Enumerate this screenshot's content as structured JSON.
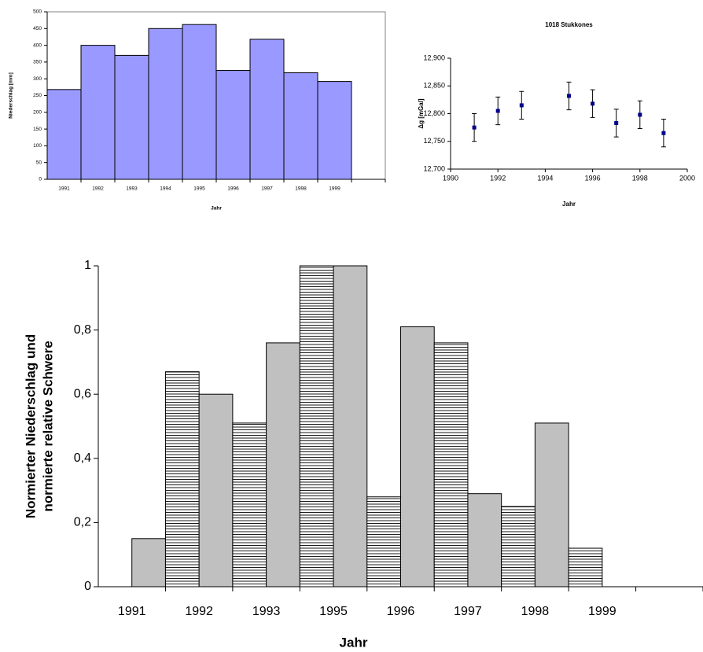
{
  "chart_data": [
    {
      "type": "bar",
      "xlabel": "Jahr",
      "ylabel": "Niederschlag [mm]",
      "categories": [
        "1991",
        "1992",
        "1993",
        "1994",
        "1995",
        "1996",
        "1997",
        "1998",
        "1999",
        null
      ],
      "values": [
        268,
        400,
        370,
        450,
        462,
        325,
        418,
        318,
        292,
        null
      ],
      "color": "#9999ff",
      "ylim": [
        0,
        500
      ],
      "yticks": [
        0,
        50,
        100,
        150,
        200,
        250,
        300,
        350,
        400,
        450,
        500
      ]
    },
    {
      "type": "scatter",
      "title": "1018 Stukkones",
      "xlabel": "Jahr",
      "ylabel": "Δg [mGal]",
      "x": [
        1991,
        1992,
        1993,
        1995,
        1996,
        1997,
        1998,
        1999
      ],
      "y": [
        12775,
        12805,
        12815,
        12832,
        12818,
        12783,
        12798,
        12765
      ],
      "errors": [
        25,
        25,
        25,
        25,
        25,
        25,
        25,
        25
      ],
      "color": "#00008b",
      "xlim": [
        1990,
        2000
      ],
      "xticks": [
        1990,
        1992,
        1994,
        1996,
        1998,
        2000
      ],
      "ylim": [
        12700,
        12900
      ],
      "yticks": [
        {
          "value": 12700,
          "label": "12,700"
        },
        {
          "value": 12750,
          "label": "12,750"
        },
        {
          "value": 12800,
          "label": "12,800"
        },
        {
          "value": 12850,
          "label": "12,850"
        },
        {
          "value": 12900,
          "label": "12,900"
        }
      ]
    },
    {
      "type": "bar",
      "xlabel": "Jahr",
      "ylabel": [
        "Normierter Niederschlag und",
        "normierte relative Schwere"
      ],
      "categories": [
        "1991",
        "1992",
        "1993",
        "1995",
        "1996",
        "1997",
        "1998",
        "1999",
        null
      ],
      "series": [
        {
          "color": "#ffffff",
          "hatch": "horizontal",
          "values": [
            0,
            0.67,
            0.51,
            1,
            0.28,
            0.76,
            0.25,
            0.12,
            null
          ]
        },
        {
          "color": "#c0c0c0",
          "values": [
            0.15,
            0.6,
            0.76,
            1,
            0.81,
            0.29,
            0.51,
            0,
            null
          ]
        }
      ],
      "ylim": [
        0,
        1
      ],
      "yticks": [
        0,
        {
          "value": 0.2,
          "label": "0,2"
        },
        {
          "value": 0.4,
          "label": "0,4"
        },
        {
          "value": 0.6,
          "label": "0,6"
        },
        {
          "value": 0.8,
          "label": "0,8"
        },
        1
      ]
    }
  ]
}
